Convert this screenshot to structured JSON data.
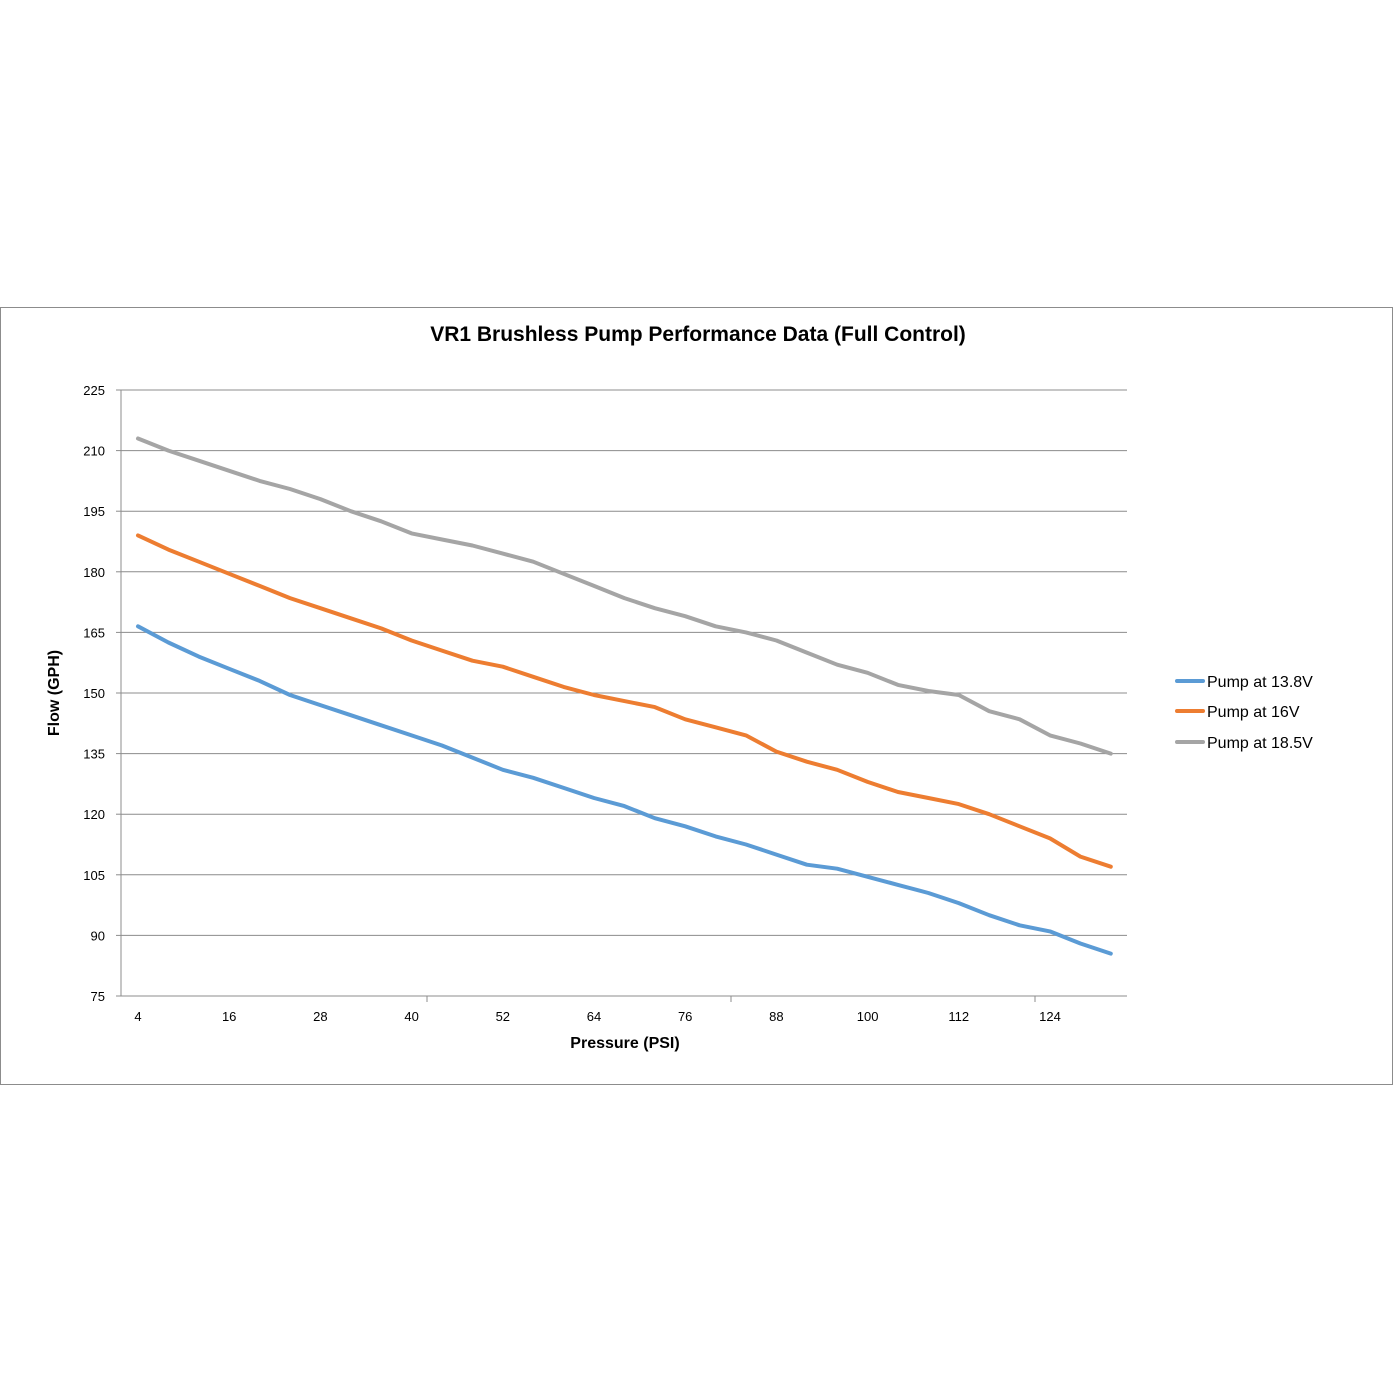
{
  "chart_data": {
    "type": "line",
    "title": "VR1 Brushless Pump Performance Data (Full Control)",
    "xlabel": "Pressure (PSI)",
    "ylabel": "Flow (GPH)",
    "ylim": [
      75,
      225
    ],
    "yticks": [
      "75",
      "90",
      "105",
      "120",
      "135",
      "150",
      "165",
      "180",
      "195",
      "210",
      "225"
    ],
    "x_tick_labels": [
      "4",
      "16",
      "28",
      "40",
      "52",
      "64",
      "76",
      "88",
      "100",
      "112",
      "124"
    ],
    "x": [
      4,
      8,
      12,
      16,
      20,
      24,
      28,
      32,
      36,
      40,
      44,
      48,
      52,
      56,
      60,
      64,
      68,
      72,
      76,
      80,
      84,
      88,
      92,
      96,
      100,
      104,
      108,
      112,
      116,
      120,
      124,
      128,
      132
    ],
    "legend_position": "right",
    "grid": true,
    "series": [
      {
        "name": "Pump at 13.8V",
        "color": "#5B9BD5",
        "values": [
          166.5,
          162.5,
          159,
          156,
          153,
          149.5,
          147,
          144.5,
          142,
          139.5,
          137,
          134,
          131,
          129,
          126.5,
          124,
          122,
          119,
          117,
          114.5,
          112.5,
          110,
          107.5,
          106.5,
          104.5,
          102.5,
          100.5,
          98,
          95,
          92.5,
          91,
          88,
          85.5
        ]
      },
      {
        "name": "Pump at 16V",
        "color": "#ED7D31",
        "values": [
          189,
          185.5,
          182.5,
          179.5,
          176.5,
          173.5,
          171,
          168.5,
          166,
          163,
          160.5,
          158,
          156.5,
          154,
          151.5,
          149.5,
          148,
          146.5,
          143.5,
          141.5,
          139.5,
          135.5,
          133,
          131,
          128,
          125.5,
          124,
          122.5,
          120,
          117,
          114,
          109.5,
          107
        ]
      },
      {
        "name": "Pump at 18.5V",
        "color": "#A5A5A5",
        "values": [
          213,
          210,
          207.5,
          205,
          202.5,
          200.5,
          198,
          195,
          192.5,
          189.5,
          188,
          186.5,
          184.5,
          182.5,
          179.5,
          176.5,
          173.5,
          171,
          169,
          166.5,
          165,
          163,
          160,
          157,
          155,
          152,
          150.5,
          149.5,
          145.5,
          143.5,
          139.5,
          137.5,
          135
        ]
      }
    ]
  }
}
